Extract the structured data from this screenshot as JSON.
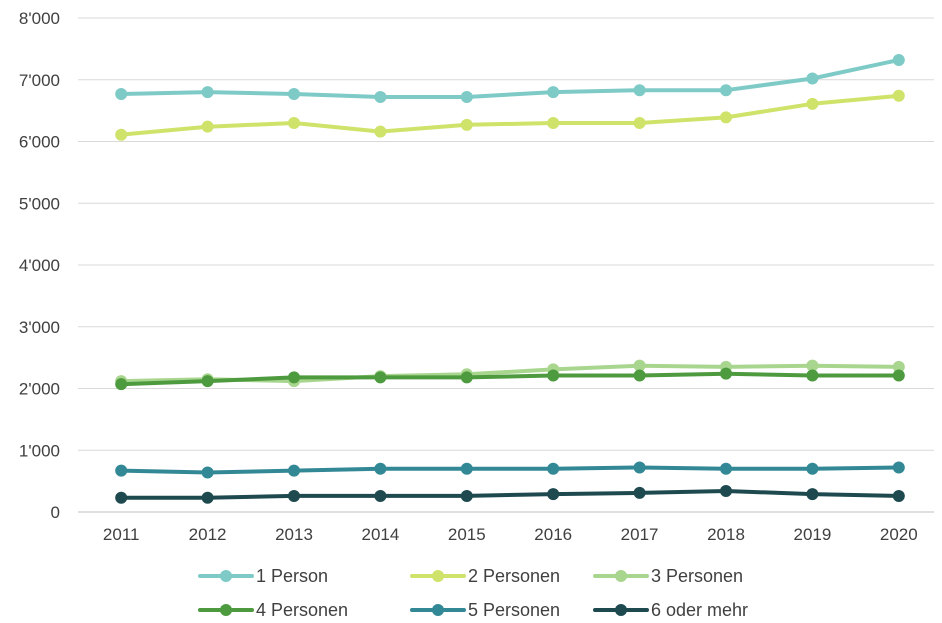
{
  "chart_data": {
    "type": "line",
    "title": "",
    "xlabel": "",
    "ylabel": "",
    "x": [
      "2011",
      "2012",
      "2013",
      "2014",
      "2015",
      "2016",
      "2017",
      "2018",
      "2019",
      "2020"
    ],
    "ylim": [
      0,
      8000
    ],
    "yticks": [
      0,
      1000,
      2000,
      3000,
      4000,
      5000,
      6000,
      7000,
      8000
    ],
    "ytick_labels": [
      "0",
      "1'000",
      "2'000",
      "3'000",
      "4'000",
      "5'000",
      "6'000",
      "7'000",
      "8'000"
    ],
    "grid": true,
    "legend_position": "bottom",
    "series": [
      {
        "name": "1 Person",
        "color": "#7ECAC6",
        "values": [
          6770,
          6800,
          6770,
          6720,
          6720,
          6800,
          6830,
          6830,
          7020,
          7320
        ]
      },
      {
        "name": "2 Personen",
        "color": "#CFE26A",
        "values": [
          6110,
          6240,
          6300,
          6160,
          6270,
          6300,
          6300,
          6390,
          6610,
          6740
        ]
      },
      {
        "name": "3 Personen",
        "color": "#A9D68F",
        "values": [
          2120,
          2150,
          2120,
          2200,
          2230,
          2310,
          2370,
          2350,
          2370,
          2350
        ]
      },
      {
        "name": "4 Personen",
        "color": "#4E9A3F",
        "values": [
          2070,
          2120,
          2180,
          2180,
          2180,
          2210,
          2210,
          2240,
          2210,
          2210
        ]
      },
      {
        "name": "5 Personen",
        "color": "#338896",
        "values": [
          670,
          640,
          670,
          700,
          700,
          700,
          720,
          700,
          700,
          720
        ]
      },
      {
        "name": "6 oder mehr",
        "color": "#1E4A4F",
        "values": [
          230,
          230,
          260,
          260,
          260,
          290,
          310,
          340,
          290,
          260
        ]
      }
    ]
  }
}
